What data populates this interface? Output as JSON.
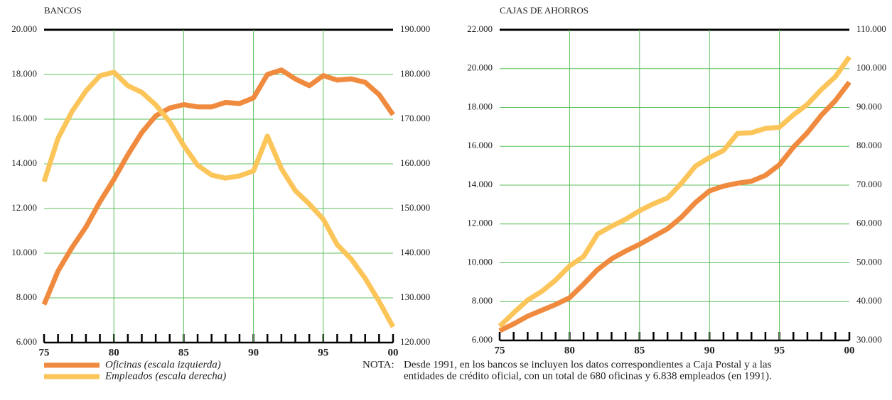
{
  "chart_data": [
    {
      "type": "line",
      "title": "BANCOS",
      "categories": [
        "75",
        null,
        null,
        null,
        null,
        "80",
        null,
        null,
        null,
        null,
        "85",
        null,
        null,
        null,
        null,
        "90",
        null,
        null,
        null,
        null,
        "95",
        null,
        null,
        null,
        null,
        "00"
      ],
      "ylim": [
        6000,
        20000
      ],
      "yticks": [
        {
          "value": 6000,
          "label": "6.000"
        },
        {
          "value": 8000,
          "label": "8.000"
        },
        {
          "value": 10000,
          "label": "10.000"
        },
        {
          "value": 12000,
          "label": "12.000"
        },
        {
          "value": 14000,
          "label": "14.000"
        },
        {
          "value": 16000,
          "label": "16.000"
        },
        {
          "value": 18000,
          "label": "18.000"
        },
        {
          "value": 20000,
          "label": "20.000"
        }
      ],
      "y2lim": [
        120000,
        190000
      ],
      "y2ticks": [
        {
          "value": 120000,
          "label": "120.000"
        },
        {
          "value": 130000,
          "label": "130.000"
        },
        {
          "value": 140000,
          "label": "140.000"
        },
        {
          "value": 150000,
          "label": "150.000"
        },
        {
          "value": 160000,
          "label": "160.000"
        },
        {
          "value": 170000,
          "label": "170.000"
        },
        {
          "value": 180000,
          "label": "180.000"
        },
        {
          "value": 190000,
          "label": "190.000"
        }
      ],
      "grid": true,
      "series": [
        {
          "name": "Oficinas (escala izquierda)",
          "color": "#f08a3e",
          "values": [
            7700,
            9200,
            10250,
            11170,
            12300,
            13300,
            14400,
            15400,
            16150,
            16500,
            16650,
            16550,
            16550,
            16750,
            16700,
            16950,
            18000,
            18200,
            17800,
            17500,
            17950,
            17750,
            17800,
            17650,
            17100,
            16200
          ]
        },
        {
          "name": "Empleados (escala derecha)",
          "color": "#fcc55a",
          "axis": "y2",
          "values": [
            156000,
            165700,
            171700,
            176300,
            179700,
            180500,
            177500,
            176000,
            173200,
            169400,
            164100,
            159700,
            157500,
            156800,
            157300,
            158400,
            166200,
            158900,
            154000,
            151000,
            147600,
            141900,
            138700,
            134400,
            129200,
            123500
          ]
        }
      ]
    },
    {
      "type": "line",
      "title": "CAJAS DE AHORROS",
      "categories": [
        "75",
        null,
        null,
        null,
        null,
        "80",
        null,
        null,
        null,
        null,
        "85",
        null,
        null,
        null,
        null,
        "90",
        null,
        null,
        null,
        null,
        "95",
        null,
        null,
        null,
        null,
        "00"
      ],
      "ylim": [
        6000,
        22000
      ],
      "yticks": [
        {
          "value": 6000,
          "label": "6.000"
        },
        {
          "value": 8000,
          "label": "8.000"
        },
        {
          "value": 10000,
          "label": "10.000"
        },
        {
          "value": 12000,
          "label": "12.000"
        },
        {
          "value": 14000,
          "label": "14.000"
        },
        {
          "value": 16000,
          "label": "16.000"
        },
        {
          "value": 18000,
          "label": "18.000"
        },
        {
          "value": 20000,
          "label": "20.000"
        },
        {
          "value": 22000,
          "label": "22.000"
        }
      ],
      "y2lim": [
        30000,
        110000
      ],
      "y2ticks": [
        {
          "value": 30000,
          "label": "30.000"
        },
        {
          "value": 40000,
          "label": "40.000"
        },
        {
          "value": 50000,
          "label": "50.000"
        },
        {
          "value": 60000,
          "label": "60.000"
        },
        {
          "value": 70000,
          "label": "70.000"
        },
        {
          "value": 80000,
          "label": "80.000"
        },
        {
          "value": 90000,
          "label": "90.000"
        },
        {
          "value": 100000,
          "label": "100.000"
        },
        {
          "value": 110000,
          "label": "110.000"
        }
      ],
      "grid": true,
      "series": [
        {
          "color": "#f08a3e",
          "values": [
            6500,
            6850,
            7250,
            7550,
            7850,
            8200,
            8900,
            9650,
            10200,
            10600,
            10950,
            11350,
            11750,
            12350,
            13100,
            13700,
            13950,
            14100,
            14200,
            14500,
            15050,
            15950,
            16700,
            17600,
            18350,
            19300
          ]
        },
        {
          "color": "#fcc55a",
          "axis": "y2",
          "values": [
            33650,
            37100,
            40400,
            42600,
            45500,
            49200,
            51600,
            57400,
            59400,
            61200,
            63400,
            65200,
            66700,
            70500,
            74900,
            77100,
            78900,
            83300,
            83500,
            84600,
            84900,
            88100,
            90800,
            94600,
            97900,
            103000
          ]
        }
      ]
    }
  ],
  "note": {
    "label": "NOTA:",
    "lines": [
      "Desde 1991, en los bancos se incluyen los datos correspondientes a Caja Postal y a las",
      "entidades de crédito oficial, con un total de 680 oficinas y 6.838 empleados (en 1991)."
    ]
  }
}
